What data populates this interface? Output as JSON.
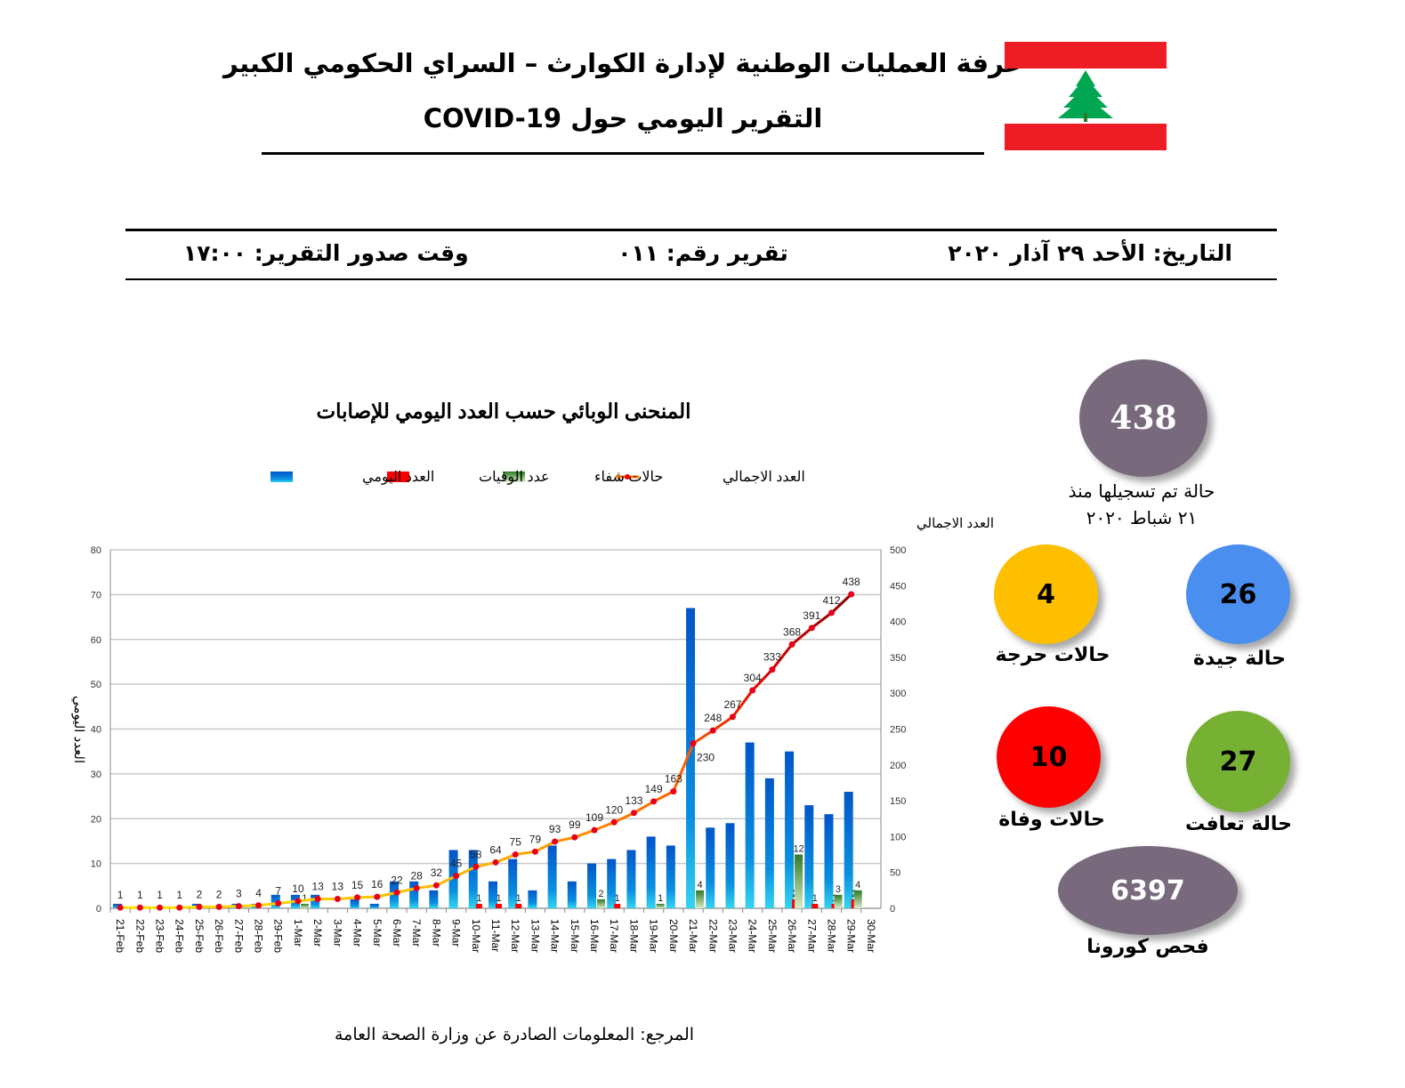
{
  "header": {
    "title_line1": "غرفة العمليات الوطنية لإدارة الكوارث – السراي الحكومي الكبير",
    "title_line2": "التقرير اليومي حول COVID-19",
    "flag_colors": {
      "red": "#ee1c25",
      "white": "#ffffff",
      "green": "#00a651"
    }
  },
  "info_bar": {
    "date": "التاريخ: الأحد ٢٩ آذار ٢٠٢٠",
    "report_number": "تقرير رقم: ٠١١",
    "report_time": "وقت صدور التقرير: ١٧:٠٠"
  },
  "stats": {
    "total": {
      "value": "438",
      "caption_line1": "حالة تم تسجيلها منذ",
      "caption_line2": "٢١ شباط ٢٠٢٠",
      "color": "#786a7c"
    },
    "critical": {
      "value": "4",
      "label": "حالات حرجة",
      "color": "#fdbf00"
    },
    "good": {
      "value": "26",
      "label": "حالة جيدة",
      "color": "#4a8ef0"
    },
    "deaths": {
      "value": "10",
      "label": "حالات وفاة",
      "color": "#ff0000"
    },
    "recovered": {
      "value": "27",
      "label": "حالة تعافت",
      "color": "#76b133"
    },
    "tests": {
      "value": "6397",
      "label": "فحص كورونا",
      "color": "#786a7c"
    }
  },
  "chart_data": {
    "type": "bar",
    "title": "المنحنى الوبائي حسب العدد اليومي للإصابات",
    "ylabel": "العدد اليومي",
    "y2label": "العدد الاجمالي",
    "ylim": [
      0,
      80
    ],
    "y2lim": [
      0,
      500
    ],
    "yticks": [
      0,
      10,
      20,
      30,
      40,
      50,
      60,
      70,
      80
    ],
    "y2ticks": [
      0,
      50,
      100,
      150,
      200,
      250,
      300,
      350,
      400,
      450,
      500
    ],
    "grid": true,
    "legend_position": "top",
    "legend": [
      "العدد الاجمالي",
      "حالات شفاء",
      "عدد الوفيات",
      "العدد اليومي"
    ],
    "categories": [
      "21-Feb",
      "22-Feb",
      "23-Feb",
      "24-Feb",
      "25-Feb",
      "26-Feb",
      "27-Feb",
      "28-Feb",
      "29-Feb",
      "1-Mar",
      "2-Mar",
      "3-Mar",
      "4-Mar",
      "5-Mar",
      "6-Mar",
      "7-Mar",
      "8-Mar",
      "9-Mar",
      "10-Mar",
      "11-Mar",
      "12-Mar",
      "13-Mar",
      "14-Mar",
      "15-Mar",
      "16-Mar",
      "17-Mar",
      "18-Mar",
      "19-Mar",
      "20-Mar",
      "21-Mar",
      "22-Mar",
      "23-Mar",
      "24-Mar",
      "25-Mar",
      "26-Mar",
      "27-Mar",
      "28-Mar",
      "29-Mar",
      "30-Mar"
    ],
    "series": [
      {
        "name": "العدد اليومي",
        "axis": "left",
        "type": "bar",
        "color": "#0a6fd0",
        "values": [
          1,
          0,
          0,
          0,
          1,
          0,
          1,
          1,
          3,
          3,
          3,
          0,
          2,
          1,
          6,
          6,
          4,
          13,
          13,
          6,
          11,
          4,
          14,
          6,
          10,
          11,
          13,
          16,
          14,
          67,
          18,
          19,
          37,
          29,
          35,
          23,
          21,
          26,
          null
        ]
      },
      {
        "name": "عدد الوفيات",
        "axis": "left",
        "type": "bar",
        "color": "#ff0000",
        "values": [
          0,
          0,
          0,
          0,
          0,
          0,
          0,
          0,
          0,
          0,
          0,
          0,
          0,
          0,
          0,
          0,
          0,
          0,
          1,
          1,
          1,
          0,
          0,
          0,
          0,
          1,
          0,
          0,
          0,
          0,
          0,
          0,
          0,
          0,
          2,
          1,
          1,
          2,
          null
        ]
      },
      {
        "name": "حالات شفاء",
        "axis": "left",
        "type": "bar",
        "color": "#3f8a2f",
        "values": [
          0,
          0,
          0,
          0,
          0,
          0,
          0,
          0,
          0,
          1,
          0,
          0,
          0,
          0,
          0,
          0,
          0,
          0,
          0,
          0,
          0,
          0,
          0,
          0,
          2,
          0,
          0,
          1,
          0,
          4,
          0,
          0,
          0,
          0,
          12,
          0,
          3,
          4,
          null
        ]
      },
      {
        "name": "العدد الاجمالي",
        "axis": "right",
        "type": "line",
        "color": "#ff6a00",
        "values": [
          1,
          1,
          1,
          1,
          2,
          2,
          3,
          4,
          7,
          10,
          13,
          13,
          15,
          16,
          22,
          28,
          32,
          45,
          58,
          64,
          75,
          79,
          93,
          99,
          109,
          120,
          133,
          149,
          163,
          230,
          248,
          267,
          304,
          333,
          368,
          391,
          412,
          438,
          null
        ]
      }
    ]
  },
  "footer": {
    "source": "المرجع: المعلومات الصادرة عن وزارة الصحة العامة"
  }
}
